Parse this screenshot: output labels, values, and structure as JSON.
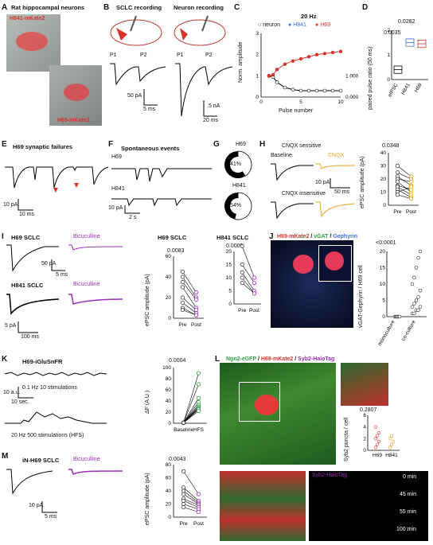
{
  "panels": {
    "A": {
      "label": "A",
      "title": "Rat hippocampal neurons",
      "img1": "H841-mKate2",
      "img2": "H69-mKate2"
    },
    "B": {
      "label": "B",
      "t1": "SCLC recording",
      "t2": "Neuron recording",
      "p1": "P1",
      "p2": "P2",
      "p1b": "P1",
      "p2b": "P2",
      "sb1": "50 pA",
      "sb1t": "5 ms",
      "sb2": ".5 nA",
      "sb2t": "20 ms"
    },
    "C": {
      "label": "C",
      "freq": "20 Hz",
      "leg_neuron": "neuron",
      "leg_h841": "H841",
      "leg_h69": "H69",
      "ylabel": "Norm. amplitude",
      "xlabel": "Pulse number",
      "yticks": [
        "0",
        "1",
        "2",
        "3"
      ],
      "xticks": [
        "0",
        "5",
        "10"
      ],
      "right_ticks": [
        "1.000",
        "0.000"
      ]
    },
    "D": {
      "label": "D",
      "ylabel": "paired pulse ratio (50 ms)",
      "p1": "0.0282",
      "p2": "0.0035",
      "cats": [
        "eIPSC",
        "H841",
        "H69"
      ],
      "yticks": [
        "0",
        "1",
        "2"
      ]
    },
    "E": {
      "label": "E",
      "title": "H69 synaptic failures",
      "sb": "10 pA",
      "sbt": "10 ms"
    },
    "F": {
      "label": "F",
      "title": "Spontaneous events",
      "h69": "H69",
      "h841": "H841",
      "sb": "10 pA",
      "sbt": "2 s"
    },
    "G": {
      "label": "G",
      "h69": "H69",
      "h841": "H841",
      "pct1": "41%",
      "pct2": "54%"
    },
    "H": {
      "label": "H",
      "s1": "CNQX sensitive",
      "baseline": "Baseline",
      "cnqx": "CNQX",
      "s2": "CNQX insensitive",
      "sb": "10 pA",
      "sbt": "50 ms",
      "p": "0.0348",
      "ylabel": "ePSC amplitude (pA)",
      "cats": [
        "Pre",
        "Post"
      ],
      "yticks": [
        "0",
        "10",
        "20",
        "30",
        "40"
      ]
    },
    "I": {
      "label": "I",
      "h69": "H69 SCLC",
      "bic": "Bicuculline",
      "h841": "H841 SCLC",
      "bic2": "Bicuculline",
      "sb": "50 pA",
      "sbt": "5 ms",
      "sb2": "5 pA",
      "sb2t": "100 ms",
      "plot1": "H69 SCLC",
      "plot2": "H841 SCLC",
      "p1": "0.0083",
      "p2": "0.0009",
      "ylabel": "ePSC amplitude (pA)",
      "cats": [
        "Pre",
        "Post"
      ],
      "yticks1": [
        "0",
        "20",
        "40",
        "60"
      ],
      "yticks2": [
        "0",
        "5",
        "10",
        "15",
        "20"
      ]
    },
    "J": {
      "label": "J",
      "legend_a": "H69-mKate2",
      "legend_b": "vGAT",
      "legend_c": "Gephyrin",
      "p": "<0.0001",
      "ylabel": "vGAT-Gephyrin / H69 cell",
      "cats": [
        "monoculture",
        "co-culture"
      ],
      "yticks": [
        "0",
        "5",
        "10",
        "15",
        "20"
      ]
    },
    "K": {
      "label": "K",
      "title": "H69-iGluSnFR",
      "cond1": "0.1 Hz 10 stimulations",
      "cond2": "20 Hz 500 stimulations (HFS)",
      "sb": "10 a.u.",
      "sbt": "10 sec.",
      "p": "0.0004",
      "ylabel": "ΔF (A.U.)",
      "cats": [
        "Baseline",
        "HFS"
      ],
      "yticks": [
        "0",
        "20",
        "40",
        "60",
        "80",
        "100"
      ]
    },
    "L": {
      "label": "L",
      "legend_a": "Ngn2-eGFP",
      "legend_b": "H69-mKate2",
      "legend_c": "Syb2-HaloTag",
      "p": "0.2807",
      "ylabel": "Syb2 puncta / cell",
      "cats": [
        "H69",
        "H841"
      ],
      "yticks": [
        "0",
        "2",
        "4",
        "6"
      ],
      "halo": "Syb2-HaloTag",
      "times": [
        "0 min",
        "45 min",
        "55 min",
        "100 min"
      ]
    },
    "M": {
      "label": "M",
      "title": "iN-H69 SCLC",
      "bic": "Bicuculline",
      "sb": "10 pA",
      "sbt": "5 ms",
      "p": "0.0043",
      "ylabel": "ePSC amplitude (pA)",
      "cats": [
        "Pre",
        "Post"
      ],
      "yticks": [
        "0",
        "20",
        "40",
        "60",
        "80"
      ]
    }
  },
  "chart_data": [
    {
      "type": "line",
      "panel": "C",
      "title": "20 Hz",
      "xlabel": "Pulse number",
      "ylabel": "Norm. amplitude",
      "xlim": [
        0,
        10
      ],
      "ylim": [
        0,
        3
      ],
      "series": [
        {
          "name": "neuron",
          "x": [
            1,
            1.5,
            2,
            3,
            4,
            5,
            6,
            7,
            8,
            9,
            10
          ],
          "values": [
            1,
            0.95,
            0.7,
            0.45,
            0.35,
            0.3,
            0.3,
            0.3,
            0.3,
            0.3,
            0.3
          ]
        },
        {
          "name": "H69",
          "x": [
            1,
            1.5,
            2,
            3,
            4,
            5,
            6,
            7,
            8,
            9,
            10
          ],
          "values": [
            1,
            1.05,
            1.3,
            1.55,
            1.7,
            1.8,
            1.9,
            2.0,
            2.05,
            2.1,
            2.15
          ]
        }
      ]
    },
    {
      "type": "bar",
      "panel": "D",
      "ylabel": "paired pulse ratio (50 ms)",
      "categories": [
        "eIPSC",
        "H841",
        "H69"
      ],
      "values": [
        0.4,
        1.5,
        1.45
      ],
      "ylim": [
        0,
        2
      ]
    },
    {
      "type": "pie",
      "panel": "G",
      "categories": [
        "H69",
        "H841"
      ],
      "values": [
        41,
        54
      ]
    },
    {
      "type": "scatter",
      "panel": "H",
      "ylabel": "ePSC amplitude (pA)",
      "categories": [
        "Pre",
        "Post"
      ],
      "ylim": [
        0,
        40
      ],
      "pairs": [
        [
          30,
          22
        ],
        [
          25,
          20
        ],
        [
          22,
          15
        ],
        [
          20,
          18
        ],
        [
          18,
          10
        ],
        [
          15,
          12
        ],
        [
          14,
          8
        ],
        [
          12,
          6
        ],
        [
          10,
          14
        ],
        [
          8,
          5
        ]
      ]
    },
    {
      "type": "scatter",
      "panel": "I",
      "ylabel": "ePSC amplitude (pA)",
      "categories": [
        "Pre",
        "Post"
      ],
      "ylim": [
        0,
        60
      ],
      "pairs": [
        [
          45,
          25
        ],
        [
          40,
          20
        ],
        [
          35,
          18
        ],
        [
          30,
          10
        ],
        [
          20,
          8
        ],
        [
          15,
          5
        ],
        [
          10,
          3
        ],
        [
          8,
          3
        ]
      ]
    },
    {
      "type": "scatter",
      "panel": "I2",
      "ylabel": "ePSC amplitude (pA)",
      "categories": [
        "Pre",
        "Post"
      ],
      "ylim": [
        0,
        20
      ],
      "pairs": [
        [
          22,
          10
        ],
        [
          15,
          8
        ],
        [
          12,
          5
        ],
        [
          10,
          4
        ],
        [
          8,
          4
        ]
      ]
    },
    {
      "type": "scatter",
      "panel": "K",
      "ylabel": "ΔF (A.U.)",
      "categories": [
        "Baseline",
        "HFS"
      ],
      "ylim": [
        0,
        100
      ],
      "pairs": [
        [
          1,
          90
        ],
        [
          1,
          70
        ],
        [
          1,
          45
        ],
        [
          1,
          38
        ],
        [
          1,
          33
        ],
        [
          1,
          30
        ],
        [
          1,
          28
        ],
        [
          1,
          26
        ],
        [
          1,
          25
        ],
        [
          1,
          22
        ]
      ]
    },
    {
      "type": "scatter",
      "panel": "M",
      "ylabel": "ePSC amplitude (pA)",
      "categories": [
        "Pre",
        "Post"
      ],
      "ylim": [
        0,
        80
      ],
      "pairs": [
        [
          70,
          35
        ],
        [
          45,
          25
        ],
        [
          40,
          22
        ],
        [
          35,
          20
        ],
        [
          28,
          18
        ],
        [
          25,
          15
        ],
        [
          20,
          12
        ],
        [
          15,
          8
        ]
      ]
    }
  ]
}
